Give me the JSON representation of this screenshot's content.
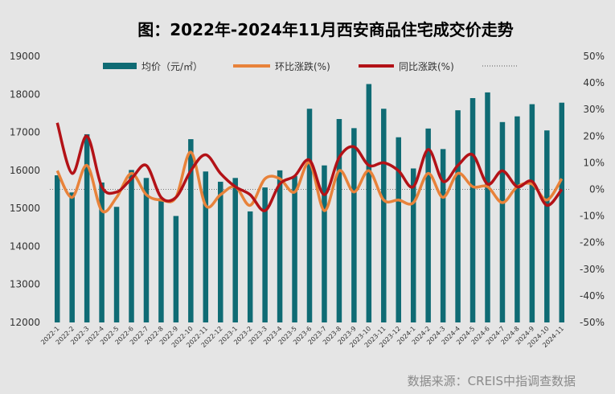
{
  "chart_data": {
    "type": "bar+line",
    "title": "图：2022年-2024年11月西安商品住宅成交价走势",
    "categories": [
      "2022-1",
      "2022-2",
      "2022-3",
      "2022-4",
      "2022-5",
      "2022-6",
      "2022-7",
      "2022-8",
      "2022-9",
      "2022-10",
      "2022-11",
      "2022-12",
      "2023-1",
      "2023-2",
      "2023-3",
      "2023-4",
      "2023-5",
      "2023-6",
      "2023-7",
      "2023-8",
      "2023-9",
      "2023-10",
      "2023-11",
      "2023-12",
      "2024-1",
      "2024-2",
      "2024-3",
      "2024-4",
      "2024-5",
      "2024-6",
      "2024-7",
      "2024-8",
      "2024-9",
      "2024-10",
      "2024-11"
    ],
    "series": [
      {
        "name": "均价（元/㎡）",
        "axis": "left",
        "kind": "bar",
        "color": "#0f6b74",
        "values": [
          15870,
          15420,
          16950,
          15680,
          15040,
          16010,
          15800,
          15270,
          14800,
          16820,
          15970,
          15700,
          15800,
          14920,
          15550,
          16000,
          15850,
          17620,
          16130,
          17350,
          17110,
          18270,
          17620,
          16870,
          16050,
          17100,
          16560,
          17580,
          17900,
          18050,
          17270,
          17420,
          17740,
          17050,
          17780
        ]
      },
      {
        "name": "环比涨跌(%)",
        "axis": "right",
        "kind": "line",
        "color": "#e8823a",
        "values": [
          7,
          -3,
          9,
          -8,
          -3,
          6,
          -2,
          -4,
          -3,
          14,
          -6,
          -2,
          1,
          -6,
          4,
          4,
          -1,
          10,
          -8,
          7,
          -1,
          7,
          -4,
          -4,
          -5,
          6,
          -3,
          6,
          1,
          1,
          -5,
          1,
          2,
          -4,
          4
        ]
      },
      {
        "name": "同比涨跌(%)",
        "axis": "right",
        "kind": "line",
        "color": "#b31217",
        "values": [
          25,
          6,
          20,
          1,
          -1,
          4,
          9,
          -3,
          -3,
          7,
          13,
          6,
          1,
          -2,
          -8,
          2,
          5,
          11,
          -2,
          12,
          16,
          9,
          10,
          7,
          1,
          15,
          3,
          9,
          13,
          2,
          7,
          1,
          3,
          -6,
          0
        ]
      }
    ],
    "left_axis": {
      "min": 12000,
      "max": 19000,
      "ticks": [
        "12000",
        "13000",
        "14000",
        "15000",
        "16000",
        "17000",
        "18000",
        "19000"
      ]
    },
    "right_axis": {
      "min": -50,
      "max": 50,
      "ticks": [
        "-50%",
        "-40%",
        "-30%",
        "-20%",
        "-10%",
        "0%",
        "10%",
        "20%",
        "30%",
        "40%",
        "50%"
      ]
    },
    "legend": {
      "position": "top",
      "items": [
        "均价（元/㎡）",
        "环比涨跌(%)",
        "同比涨跌(%)"
      ]
    },
    "source": "数据来源：CREIS中指调查数据"
  }
}
